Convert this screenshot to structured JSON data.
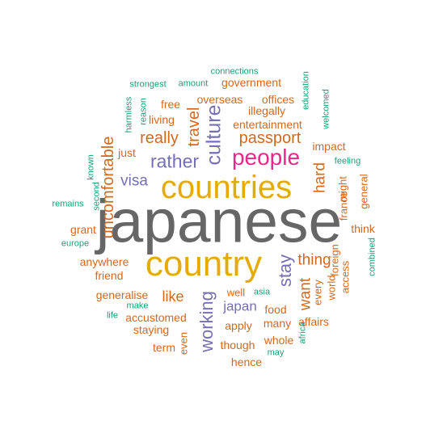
{
  "colors": {
    "orange": "#d2691e",
    "teal": "#1b9e77",
    "purple": "#7570b3",
    "magenta": "#e7298a",
    "gold": "#e6ab02",
    "gray": "#666666"
  },
  "words": [
    {
      "text": "japanese",
      "color": "gray"
    },
    {
      "text": "country",
      "color": "gold"
    },
    {
      "text": "countries",
      "color": "gold"
    },
    {
      "text": "people",
      "color": "magenta"
    },
    {
      "text": "culture",
      "color": "purple"
    },
    {
      "text": "rather",
      "color": "purple"
    },
    {
      "text": "travel",
      "color": "orange"
    },
    {
      "text": "really",
      "color": "orange"
    },
    {
      "text": "passport",
      "color": "orange"
    },
    {
      "text": "uncomfortable",
      "color": "orange"
    },
    {
      "text": "stay",
      "color": "purple"
    },
    {
      "text": "working",
      "color": "purple"
    },
    {
      "text": "thing",
      "color": "orange"
    },
    {
      "text": "visa",
      "color": "purple"
    },
    {
      "text": "hard",
      "color": "orange"
    },
    {
      "text": "want",
      "color": "orange"
    },
    {
      "text": "japan",
      "color": "purple"
    },
    {
      "text": "like",
      "color": "orange"
    },
    {
      "text": "entertainment",
      "color": "orange"
    },
    {
      "text": "government",
      "color": "orange"
    },
    {
      "text": "overseas",
      "color": "orange"
    },
    {
      "text": "offices",
      "color": "orange"
    },
    {
      "text": "illegally",
      "color": "orange"
    },
    {
      "text": "free",
      "color": "orange"
    },
    {
      "text": "living",
      "color": "orange"
    },
    {
      "text": "just",
      "color": "orange"
    },
    {
      "text": "impact",
      "color": "orange"
    },
    {
      "text": "grant",
      "color": "orange"
    },
    {
      "text": "anywhere",
      "color": "orange"
    },
    {
      "text": "friend",
      "color": "orange"
    },
    {
      "text": "generalise",
      "color": "orange"
    },
    {
      "text": "accustomed",
      "color": "orange"
    },
    {
      "text": "staying",
      "color": "orange"
    },
    {
      "text": "term",
      "color": "orange"
    },
    {
      "text": "even",
      "color": "orange"
    },
    {
      "text": "apply",
      "color": "orange"
    },
    {
      "text": "though",
      "color": "orange"
    },
    {
      "text": "hence",
      "color": "orange"
    },
    {
      "text": "well",
      "color": "orange"
    },
    {
      "text": "food",
      "color": "orange"
    },
    {
      "text": "many",
      "color": "orange"
    },
    {
      "text": "affairs",
      "color": "orange"
    },
    {
      "text": "whole",
      "color": "orange"
    },
    {
      "text": "every",
      "color": "orange"
    },
    {
      "text": "world",
      "color": "orange"
    },
    {
      "text": "access",
      "color": "orange"
    },
    {
      "text": "france",
      "color": "orange"
    },
    {
      "text": "might",
      "color": "orange"
    },
    {
      "text": "foreign",
      "color": "orange"
    },
    {
      "text": "think",
      "color": "orange"
    },
    {
      "text": "general",
      "color": "orange"
    },
    {
      "text": "connections",
      "color": "teal"
    },
    {
      "text": "strongest",
      "color": "teal"
    },
    {
      "text": "amount",
      "color": "teal"
    },
    {
      "text": "education",
      "color": "teal"
    },
    {
      "text": "harmless",
      "color": "teal"
    },
    {
      "text": "reason",
      "color": "teal"
    },
    {
      "text": "welcomed",
      "color": "teal"
    },
    {
      "text": "known",
      "color": "teal"
    },
    {
      "text": "feeling",
      "color": "teal"
    },
    {
      "text": "remains",
      "color": "teal"
    },
    {
      "text": "second",
      "color": "teal"
    },
    {
      "text": "europe",
      "color": "teal"
    },
    {
      "text": "combined",
      "color": "teal"
    },
    {
      "text": "asia",
      "color": "teal"
    },
    {
      "text": "make",
      "color": "teal"
    },
    {
      "text": "life",
      "color": "teal"
    },
    {
      "text": "africa",
      "color": "teal"
    },
    {
      "text": "may",
      "color": "teal"
    }
  ]
}
